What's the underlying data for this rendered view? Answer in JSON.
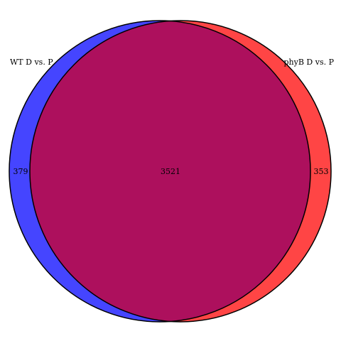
{
  "venn": {
    "sets": [
      {
        "name": "WT D vs. P",
        "only_count": "379",
        "color": "#4545ff"
      },
      {
        "name": "phyB D vs. P",
        "only_count": "353",
        "color": "#ff4545"
      }
    ],
    "intersection": {
      "count": "3521",
      "color": "#ad105d"
    },
    "outline_color": "#000000"
  }
}
